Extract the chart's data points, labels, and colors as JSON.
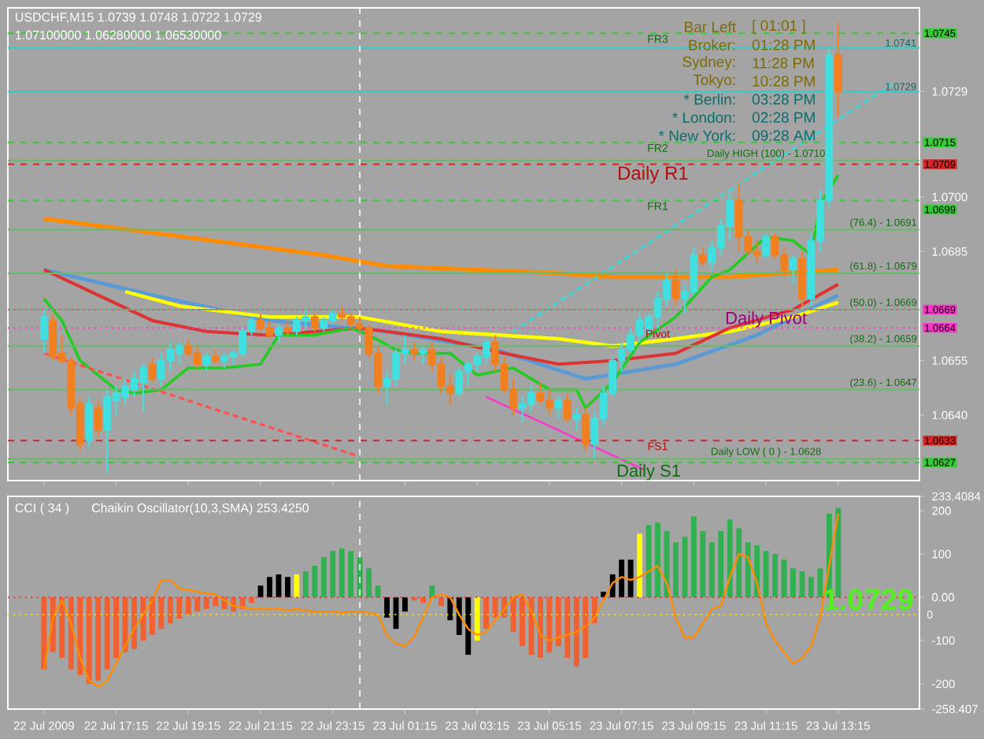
{
  "chart_data": [
    {
      "type": "candlestick",
      "title": "USDCHF,M15  1.0739 1.0748 1.0722 1.0729",
      "subtitle": "1.07100000 1.06280000 1.06530000",
      "x": [
        "2009-07-22T15:15",
        "2009-07-22T15:30",
        "2009-07-22T15:45",
        "2009-07-22T16:00",
        "2009-07-22T16:15",
        "2009-07-22T16:30",
        "2009-07-22T16:45",
        "2009-07-22T17:00",
        "2009-07-22T17:15",
        "2009-07-22T17:30",
        "2009-07-22T17:45",
        "2009-07-22T18:00",
        "2009-07-22T18:15",
        "2009-07-22T18:30",
        "2009-07-22T18:45",
        "2009-07-22T19:00",
        "2009-07-22T19:15",
        "2009-07-22T19:30",
        "2009-07-22T19:45",
        "2009-07-22T20:00",
        "2009-07-22T20:15",
        "2009-07-22T20:30",
        "2009-07-22T20:45",
        "2009-07-22T21:00",
        "2009-07-22T21:15",
        "2009-07-22T21:30",
        "2009-07-22T21:45",
        "2009-07-22T22:00",
        "2009-07-22T22:15",
        "2009-07-22T22:30",
        "2009-07-22T22:45",
        "2009-07-22T23:00",
        "2009-07-22T23:15",
        "2009-07-22T23:30",
        "2009-07-22T23:45",
        "2009-07-23T00:00",
        "2009-07-23T00:15",
        "2009-07-23T00:30",
        "2009-07-23T00:45",
        "2009-07-23T01:00",
        "2009-07-23T01:15",
        "2009-07-23T01:30",
        "2009-07-23T01:45",
        "2009-07-23T02:00",
        "2009-07-23T02:15",
        "2009-07-23T02:30",
        "2009-07-23T02:45",
        "2009-07-23T03:00",
        "2009-07-23T03:15",
        "2009-07-23T03:30",
        "2009-07-23T03:45",
        "2009-07-23T04:00",
        "2009-07-23T04:15",
        "2009-07-23T04:30",
        "2009-07-23T04:45",
        "2009-07-23T05:00",
        "2009-07-23T05:15",
        "2009-07-23T05:30",
        "2009-07-23T05:45",
        "2009-07-23T06:00",
        "2009-07-23T06:15",
        "2009-07-23T06:30",
        "2009-07-23T06:45",
        "2009-07-23T07:00",
        "2009-07-23T07:15",
        "2009-07-23T07:30",
        "2009-07-23T07:45",
        "2009-07-23T08:00",
        "2009-07-23T08:15",
        "2009-07-23T08:30",
        "2009-07-23T08:45",
        "2009-07-23T09:00",
        "2009-07-23T09:15",
        "2009-07-23T09:30",
        "2009-07-23T09:45",
        "2009-07-23T10:00",
        "2009-07-23T10:15",
        "2009-07-23T10:30",
        "2009-07-23T10:45",
        "2009-07-23T11:00",
        "2009-07-23T11:15",
        "2009-07-23T11:30",
        "2009-07-23T11:45",
        "2009-07-23T12:00",
        "2009-07-23T12:15",
        "2009-07-23T12:30",
        "2009-07-23T12:45",
        "2009-07-23T13:00",
        "2009-07-23T13:15"
      ],
      "ohlc": [
        [
          1.0661,
          1.0669,
          1.0657,
          1.0667
        ],
        [
          1.0666,
          1.0668,
          1.0655,
          1.0656
        ],
        [
          1.0657,
          1.0662,
          1.0654,
          1.0655
        ],
        [
          1.0655,
          1.0656,
          1.064,
          1.0642
        ],
        [
          1.0643,
          1.0645,
          1.063,
          1.0632
        ],
        [
          1.0633,
          1.0645,
          1.0631,
          1.0643
        ],
        [
          1.0642,
          1.0644,
          1.0634,
          1.0636
        ],
        [
          1.0636,
          1.0647,
          1.0624,
          1.0645
        ],
        [
          1.0644,
          1.0648,
          1.064,
          1.0646
        ],
        [
          1.0645,
          1.065,
          1.0643,
          1.0648
        ],
        [
          1.0647,
          1.0652,
          1.0645,
          1.065
        ],
        [
          1.0649,
          1.0654,
          1.0641,
          1.0653
        ],
        [
          1.0654,
          1.0656,
          1.0649,
          1.065
        ],
        [
          1.065,
          1.0657,
          1.0648,
          1.0655
        ],
        [
          1.0655,
          1.066,
          1.0652,
          1.0658
        ],
        [
          1.0657,
          1.066,
          1.0654,
          1.0659
        ],
        [
          1.0659,
          1.0661,
          1.0656,
          1.0657
        ],
        [
          1.0657,
          1.0659,
          1.0653,
          1.0654
        ],
        [
          1.0654,
          1.0657,
          1.0652,
          1.0656
        ],
        [
          1.0656,
          1.0658,
          1.0654,
          1.0655
        ],
        [
          1.0655,
          1.0657,
          1.0653,
          1.0656
        ],
        [
          1.0656,
          1.0658,
          1.0654,
          1.0657
        ],
        [
          1.0657,
          1.0664,
          1.0656,
          1.0663
        ],
        [
          1.0663,
          1.0667,
          1.0662,
          1.0666
        ],
        [
          1.0666,
          1.0668,
          1.0663,
          1.0664
        ],
        [
          1.0664,
          1.0666,
          1.0661,
          1.0662
        ],
        [
          1.0662,
          1.0665,
          1.066,
          1.0664
        ],
        [
          1.0664,
          1.0666,
          1.0662,
          1.0663
        ],
        [
          1.0663,
          1.0667,
          1.0662,
          1.0666
        ],
        [
          1.0666,
          1.0669,
          1.0664,
          1.0667
        ],
        [
          1.0667,
          1.0668,
          1.0663,
          1.0664
        ],
        [
          1.0664,
          1.0667,
          1.0663,
          1.0666
        ],
        [
          1.0666,
          1.0669,
          1.0665,
          1.0668
        ],
        [
          1.0668,
          1.067,
          1.0666,
          1.0667
        ],
        [
          1.0667,
          1.0668,
          1.0664,
          1.0665
        ],
        [
          1.0665,
          1.0667,
          1.0663,
          1.0664
        ],
        [
          1.0664,
          1.0665,
          1.0656,
          1.0657
        ],
        [
          1.0657,
          1.0659,
          1.0646,
          1.0648
        ],
        [
          1.0648,
          1.0652,
          1.0643,
          1.065
        ],
        [
          1.065,
          1.0658,
          1.0648,
          1.0657
        ],
        [
          1.0657,
          1.0662,
          1.0654,
          1.0658
        ],
        [
          1.0658,
          1.066,
          1.0655,
          1.0657
        ],
        [
          1.0657,
          1.0659,
          1.0654,
          1.0658
        ],
        [
          1.0658,
          1.066,
          1.0652,
          1.0654
        ],
        [
          1.0654,
          1.0656,
          1.0646,
          1.0648
        ],
        [
          1.0648,
          1.0651,
          1.0643,
          1.0646
        ],
        [
          1.0646,
          1.0653,
          1.0645,
          1.0652
        ],
        [
          1.0652,
          1.0655,
          1.0648,
          1.0654
        ],
        [
          1.0654,
          1.0657,
          1.0652,
          1.0656
        ],
        [
          1.0656,
          1.0661,
          1.0654,
          1.066
        ],
        [
          1.066,
          1.0662,
          1.0652,
          1.0654
        ],
        [
          1.0654,
          1.0656,
          1.0646,
          1.0647
        ],
        [
          1.0647,
          1.065,
          1.064,
          1.0642
        ],
        [
          1.0642,
          1.0645,
          1.0638,
          1.0643
        ],
        [
          1.0643,
          1.0648,
          1.0641,
          1.0646
        ],
        [
          1.0646,
          1.0649,
          1.0643,
          1.0644
        ],
        [
          1.0644,
          1.0647,
          1.064,
          1.0642
        ],
        [
          1.0642,
          1.0645,
          1.0639,
          1.0644
        ],
        [
          1.0644,
          1.0646,
          1.0638,
          1.0639
        ],
        [
          1.0639,
          1.0642,
          1.0636,
          1.064
        ],
        [
          1.064,
          1.0642,
          1.063,
          1.0632
        ],
        [
          1.0632,
          1.0641,
          1.0628,
          1.0639
        ],
        [
          1.0639,
          1.0648,
          1.0637,
          1.0646
        ],
        [
          1.0646,
          1.0656,
          1.0645,
          1.0655
        ],
        [
          1.0655,
          1.066,
          1.0652,
          1.0658
        ],
        [
          1.0658,
          1.0664,
          1.0657,
          1.0662
        ],
        [
          1.0662,
          1.0668,
          1.066,
          1.0666
        ],
        [
          1.0664,
          1.0668,
          1.0662,
          1.0667
        ],
        [
          1.0667,
          1.0674,
          1.0664,
          1.0672
        ],
        [
          1.0672,
          1.0679,
          1.067,
          1.0677
        ],
        [
          1.0677,
          1.068,
          1.067,
          1.0672
        ],
        [
          1.0672,
          1.0676,
          1.0668,
          1.0674
        ],
        [
          1.0674,
          1.0686,
          1.0673,
          1.0684
        ],
        [
          1.0684,
          1.0686,
          1.0681,
          1.0682
        ],
        [
          1.0682,
          1.0688,
          1.068,
          1.0686
        ],
        [
          1.0686,
          1.0694,
          1.0684,
          1.0692
        ],
        [
          1.0692,
          1.0701,
          1.0688,
          1.0699
        ],
        [
          1.0699,
          1.0704,
          1.0685,
          1.0689
        ],
        [
          1.0689,
          1.0691,
          1.0684,
          1.0685
        ],
        [
          1.0685,
          1.0688,
          1.0682,
          1.0684
        ],
        [
          1.0684,
          1.069,
          1.0683,
          1.0689
        ],
        [
          1.0689,
          1.069,
          1.0683,
          1.0684
        ],
        [
          1.0684,
          1.0686,
          1.0678,
          1.068
        ],
        [
          1.068,
          1.0684,
          1.0676,
          1.0683
        ],
        [
          1.0683,
          1.0685,
          1.067,
          1.0672
        ],
        [
          1.0672,
          1.069,
          1.067,
          1.0688
        ],
        [
          1.0688,
          1.0702,
          1.0685,
          1.0699
        ],
        [
          1.0699,
          1.0741,
          1.0697,
          1.0739
        ],
        [
          1.0739,
          1.0748,
          1.0722,
          1.0729
        ]
      ],
      "colors": [
        "#40e0e0",
        "#f08020",
        "#f08020",
        "#f08020",
        "#f08020",
        "#40e0e0",
        "#f08020",
        "#40e0e0",
        "#40e0e0",
        "#40e0e0",
        "#40e0e0",
        "#40e0e0",
        "#f08020",
        "#40e0e0",
        "#40e0e0",
        "#40e0e0",
        "#f08020",
        "#f08020",
        "#40e0e0",
        "#f08020",
        "#40e0e0",
        "#40e0e0",
        "#40e0e0",
        "#40e0e0",
        "#f08020",
        "#f08020",
        "#40e0e0",
        "#f08020",
        "#40e0e0",
        "#40e0e0",
        "#f08020",
        "#40e0e0",
        "#40e0e0",
        "#f08020",
        "#f08020",
        "#f08020",
        "#f08020",
        "#f08020",
        "#40e0e0",
        "#40e0e0",
        "#40e0e0",
        "#f08020",
        "#40e0e0",
        "#f08020",
        "#f08020",
        "#f08020",
        "#40e0e0",
        "#40e0e0",
        "#40e0e0",
        "#40e0e0",
        "#f08020",
        "#f08020",
        "#f08020",
        "#40e0e0",
        "#40e0e0",
        "#f08020",
        "#f08020",
        "#40e0e0",
        "#f08020",
        "#40e0e0",
        "#f08020",
        "#40e0e0",
        "#40e0e0",
        "#40e0e0",
        "#40e0e0",
        "#40e0e0",
        "#40e0e0",
        "#40e0e0",
        "#40e0e0",
        "#40e0e0",
        "#f08020",
        "#40e0e0",
        "#40e0e0",
        "#f08020",
        "#40e0e0",
        "#40e0e0",
        "#40e0e0",
        "#f08020",
        "#f08020",
        "#f08020",
        "#40e0e0",
        "#f08020",
        "#f08020",
        "#40e0e0",
        "#f08020",
        "#40e0e0",
        "#40e0e0",
        "#40e0e0",
        "#f08020"
      ],
      "xlim": [
        "2009-07-22T14:15",
        "2009-07-23T15:30"
      ],
      "xticks": [
        {
          "value": "2009-07-22T15:15",
          "label": null
        },
        {
          "value": "2009-07-22T17:15",
          "label": null
        },
        {
          "value": "2009-07-22T19:15",
          "label": null
        },
        {
          "value": "2009-07-22T21:15",
          "label": null
        },
        {
          "value": "2009-07-22T23:15",
          "label": null
        },
        {
          "value": "2009-07-23T01:15",
          "label": null
        },
        {
          "value": "2009-07-23T03:15",
          "label": null
        },
        {
          "value": "2009-07-23T05:15",
          "label": null
        },
        {
          "value": "2009-07-23T07:15",
          "label": null
        },
        {
          "value": "2009-07-23T09:15",
          "label": null
        },
        {
          "value": "2009-07-23T11:15",
          "label": null
        },
        {
          "value": "2009-07-23T13:15",
          "label": null
        }
      ],
      "ylim": [
        1.0622,
        1.0752
      ],
      "yticks": [
        {
          "value": 1.064,
          "label": "1.0640"
        },
        1.0655,
        1.0685,
        {
          "value": 1.07,
          "label": "1.0700"
        },
        {
          "value": 1.0729,
          "label": "1.0729"
        }
      ],
      "tick_labels": "y",
      "series": [
        {
          "type": "line",
          "color": "#ff8c00",
          "x": [
            "2009-07-22T15:15",
            "2009-07-22T23:00",
            "2009-07-23T00:45",
            "2009-07-23T05:30",
            "2009-07-23T07:00",
            "2009-07-23T10:15",
            "2009-07-23T13:15"
          ],
          "values": [
            1.0694,
            1.0684,
            1.0681,
            1.0679,
            1.0678,
            1.0678,
            1.068
          ]
        },
        {
          "type": "line",
          "color": "#5b9bd5",
          "x": [
            "2009-07-22T15:15",
            "2009-07-22T18:15",
            "2009-07-22T21:30",
            "2009-07-23T00:45",
            "2009-07-23T03:45",
            "2009-07-23T06:15",
            "2009-07-23T08:45",
            "2009-07-23T11:00",
            "2009-07-23T13:15"
          ],
          "values": [
            1.068,
            1.0673,
            1.0666,
            1.0663,
            1.0658,
            1.065,
            1.0654,
            1.0662,
            1.0673
          ]
        },
        {
          "type": "line",
          "color": "#ffff00",
          "x": [
            "2009-07-22T17:30",
            "2009-07-22T19:00",
            "2009-07-22T21:30",
            "2009-07-23T00:00",
            "2009-07-23T02:15",
            "2009-07-23T05:30",
            "2009-07-23T07:00",
            "2009-07-23T08:45",
            "2009-07-23T10:15",
            "2009-07-23T12:00",
            "2009-07-23T13:15"
          ],
          "values": [
            1.0674,
            1.067,
            1.0667,
            1.0667,
            1.0663,
            1.0661,
            1.0659,
            1.0661,
            1.0663,
            1.0667,
            1.0671
          ]
        },
        {
          "type": "line",
          "color": "#dd3333",
          "x": [
            "2009-07-22T15:15",
            "2009-07-22T16:45",
            "2009-07-22T18:15",
            "2009-07-22T19:45",
            "2009-07-22T21:30",
            "2009-07-23T00:00",
            "2009-07-23T02:15",
            "2009-07-23T04:00",
            "2009-07-23T05:30",
            "2009-07-23T07:00",
            "2009-07-23T08:45",
            "2009-07-23T10:15",
            "2009-07-23T12:00",
            "2009-07-23T13:15"
          ],
          "values": [
            1.068,
            1.0673,
            1.0666,
            1.0663,
            1.0662,
            1.0664,
            1.0661,
            1.0657,
            1.0654,
            1.0655,
            1.0657,
            1.0664,
            1.0669,
            1.0676
          ]
        },
        {
          "type": "line",
          "color": "#22cc22",
          "x": [
            "2009-07-22T15:15",
            "2009-07-22T15:45",
            "2009-07-22T16:15",
            "2009-07-22T17:15",
            "2009-07-22T17:45",
            "2009-07-22T18:30",
            "2009-07-22T19:15",
            "2009-07-22T20:15",
            "2009-07-22T21:15",
            "2009-07-22T21:45",
            "2009-07-22T22:45",
            "2009-07-22T23:45",
            "2009-07-23T00:15",
            "2009-07-23T01:00",
            "2009-07-23T01:30",
            "2009-07-23T02:30",
            "2009-07-23T03:15",
            "2009-07-23T04:15",
            "2009-07-23T05:15",
            "2009-07-23T06:00",
            "2009-07-23T06:15",
            "2009-07-23T07:00",
            "2009-07-23T07:45",
            "2009-07-23T08:45",
            "2009-07-23T09:45",
            "2009-07-23T10:15",
            "2009-07-23T11:15",
            "2009-07-23T12:00",
            "2009-07-23T12:30",
            "2009-07-23T12:45",
            "2009-07-23T13:15"
          ],
          "values": [
            1.0672,
            1.0666,
            1.0655,
            1.0647,
            1.0646,
            1.0647,
            1.0653,
            1.0653,
            1.0654,
            1.0662,
            1.0662,
            1.0664,
            1.0662,
            1.0658,
            1.0657,
            1.0657,
            1.0651,
            1.0653,
            1.0647,
            1.0647,
            1.0642,
            1.0649,
            1.066,
            1.0667,
            1.0678,
            1.068,
            1.0689,
            1.0688,
            1.0684,
            1.0698,
            1.0706
          ]
        },
        {
          "type": "line",
          "color": "#ff5050",
          "line_style": "dashed",
          "x": [
            "2009-07-22T15:15",
            "2009-07-22T23:52"
          ],
          "values": [
            1.0657,
            1.0629
          ]
        },
        {
          "type": "line",
          "color": "#33dddd",
          "line_style": "dashed",
          "x": [
            "2009-07-23T04:15",
            "2009-07-23T14:45"
          ],
          "values": [
            1.0663,
            1.0731
          ]
        },
        {
          "type": "line",
          "color": "#ff33cc",
          "x": [
            "2009-07-23T03:30",
            "2009-07-23T07:52"
          ],
          "values": [
            1.0645,
            1.0625
          ]
        }
      ],
      "ref_lines": [
        {
          "axis": "y",
          "value": 1.0745,
          "label": "1.0745",
          "color": "#33cc33",
          "line_style": "dashed"
        },
        {
          "axis": "y",
          "value": 1.0741,
          "label": "1.0741",
          "color": "#33cccc"
        },
        {
          "axis": "y",
          "value": 1.0729,
          "label": "1.0729",
          "color": "#33cccc"
        },
        {
          "axis": "y",
          "value": 1.0715,
          "label": "1.0715",
          "color": "#33cc33",
          "line_style": "dashed"
        },
        {
          "axis": "y",
          "value": 1.071,
          "color": "#66bb66"
        },
        {
          "axis": "y",
          "value": 1.0709,
          "label": "1.0709",
          "color": "#dd2222",
          "line_style": "dashed"
        },
        {
          "axis": "y",
          "value": 1.0699,
          "label": "1.0699",
          "color": "#33cc33",
          "line_style": "dashed"
        },
        {
          "axis": "y",
          "value": 1.0691,
          "color": "#66bb66"
        },
        {
          "axis": "y",
          "value": 1.0679,
          "color": "#66bb66"
        },
        {
          "axis": "y",
          "value": 1.0669,
          "color": "#66bb66"
        },
        {
          "axis": "y",
          "value": 1.0669,
          "label": "1.0669",
          "color": "#ff33cc",
          "line_style": "dotted"
        },
        {
          "axis": "y",
          "value": 1.0664,
          "label": "1.0664",
          "color": "#ff33cc",
          "line_style": "dotted"
        },
        {
          "axis": "y",
          "value": 1.0659,
          "color": "#66bb66"
        },
        {
          "axis": "y",
          "value": 1.0647,
          "color": "#66bb66"
        },
        {
          "axis": "y",
          "value": 1.0633,
          "label": "1.0633",
          "color": "#dd2222",
          "line_style": "dashed"
        },
        {
          "axis": "y",
          "value": 1.0628,
          "color": "#66bb66"
        },
        {
          "axis": "y",
          "value": 1.0627,
          "label": "1.0627",
          "color": "#33cc33",
          "line_style": "dashed"
        },
        {
          "axis": "x",
          "value": "2009-07-23T00:00",
          "color": "#ffffff",
          "line_style": "dashed"
        }
      ],
      "annotations": [
        {
          "text": "FR3",
          "x": "2009-07-23T08:15",
          "y": 1.0745
        },
        {
          "text": "FR2",
          "x": "2009-07-23T08:15",
          "y": 1.0715
        },
        {
          "text": "FR1",
          "x": "2009-07-23T08:15",
          "y": 1.0699
        },
        {
          "text": "Daily R1",
          "x": "2009-07-23T08:07",
          "y": 1.0709
        },
        {
          "text": "Pivot",
          "x": "2009-07-23T08:15",
          "y": 1.0664
        },
        {
          "text": "Daily Pivot",
          "x": "2009-07-23T11:15",
          "y": 1.0669
        },
        {
          "text": "FS1",
          "x": "2009-07-23T08:15",
          "y": 1.0633
        },
        {
          "text": "Daily S1",
          "x": "2009-07-23T08:00",
          "y": 1.0627
        },
        {
          "text": "Daily HIGH (100) - 1.0710",
          "x": "2009-07-23T11:15",
          "y": 1.071
        },
        {
          "text": "(76.4) - 1.0691",
          "x": "2009-07-23T14:30",
          "y": 1.0691
        },
        {
          "text": "(61.8) - 1.0679",
          "x": "2009-07-23T14:30",
          "y": 1.0679
        },
        {
          "text": "(50.0) - 1.0669",
          "x": "2009-07-23T14:30",
          "y": 1.0669
        },
        {
          "text": "(38.2) - 1.0659",
          "x": "2009-07-23T14:30",
          "y": 1.0659
        },
        {
          "text": "(23.6) - 1.0647",
          "x": "2009-07-23T14:30",
          "y": 1.0647
        },
        {
          "text": "Daily LOW ( 0 ) - 1.0628",
          "x": "2009-07-23T11:15",
          "y": 1.0628
        },
        "Bar Left",
        "[ 01:01 ]",
        "Broker:",
        "01:28 PM",
        "Sydney:",
        "11:28 PM",
        "Tokyo:",
        "10:28 PM",
        "* Berlin:",
        "03:28 PM",
        "* London:",
        "02:28 PM",
        "* New York:",
        "09:28 AM"
      ]
    },
    {
      "type": "bar",
      "title": "CCI ( 34 )",
      "subtitle": "Chaikin Oscillator(10,3,SMA) 253.4250",
      "x": [
        "2009-07-22T15:15",
        "2009-07-22T15:30",
        "2009-07-22T15:45",
        "2009-07-22T16:00",
        "2009-07-22T16:15",
        "2009-07-22T16:30",
        "2009-07-22T16:45",
        "2009-07-22T17:00",
        "2009-07-22T17:15",
        "2009-07-22T17:30",
        "2009-07-22T17:45",
        "2009-07-22T18:00",
        "2009-07-22T18:15",
        "2009-07-22T18:30",
        "2009-07-22T18:45",
        "2009-07-22T19:00",
        "2009-07-22T19:15",
        "2009-07-22T19:30",
        "2009-07-22T19:45",
        "2009-07-22T20:00",
        "2009-07-22T20:15",
        "2009-07-22T20:30",
        "2009-07-22T20:45",
        "2009-07-22T21:00",
        "2009-07-22T21:15",
        "2009-07-22T21:30",
        "2009-07-22T21:45",
        "2009-07-22T22:00",
        "2009-07-22T22:15",
        "2009-07-22T22:30",
        "2009-07-22T22:45",
        "2009-07-22T23:00",
        "2009-07-22T23:15",
        "2009-07-22T23:30",
        "2009-07-22T23:45",
        "2009-07-23T00:00",
        "2009-07-23T00:15",
        "2009-07-23T00:30",
        "2009-07-23T00:45",
        "2009-07-23T01:00",
        "2009-07-23T01:15",
        "2009-07-23T01:30",
        "2009-07-23T01:45",
        "2009-07-23T02:00",
        "2009-07-23T02:15",
        "2009-07-23T02:30",
        "2009-07-23T02:45",
        "2009-07-23T03:00",
        "2009-07-23T03:15",
        "2009-07-23T03:30",
        "2009-07-23T03:45",
        "2009-07-23T04:00",
        "2009-07-23T04:15",
        "2009-07-23T04:30",
        "2009-07-23T04:45",
        "2009-07-23T05:00",
        "2009-07-23T05:15",
        "2009-07-23T05:30",
        "2009-07-23T05:45",
        "2009-07-23T06:00",
        "2009-07-23T06:15",
        "2009-07-23T06:30",
        "2009-07-23T06:45",
        "2009-07-23T07:00",
        "2009-07-23T07:15",
        "2009-07-23T07:30",
        "2009-07-23T07:45",
        "2009-07-23T08:00",
        "2009-07-23T08:15",
        "2009-07-23T08:30",
        "2009-07-23T08:45",
        "2009-07-23T09:00",
        "2009-07-23T09:15",
        "2009-07-23T09:30",
        "2009-07-23T09:45",
        "2009-07-23T10:00",
        "2009-07-23T10:15",
        "2009-07-23T10:30",
        "2009-07-23T10:45",
        "2009-07-23T11:00",
        "2009-07-23T11:15",
        "2009-07-23T11:30",
        "2009-07-23T11:45",
        "2009-07-23T12:00",
        "2009-07-23T12:15",
        "2009-07-23T12:30",
        "2009-07-23T12:45",
        "2009-07-23T13:00",
        "2009-07-23T13:15"
      ],
      "xlim": [
        "2009-07-22T14:15",
        "2009-07-23T15:30"
      ],
      "xticks": [
        {
          "value": "2009-07-22T15:15",
          "label": "22 Jul 2009"
        },
        {
          "value": "2009-07-22T17:15",
          "label": "22 Jul 17:15"
        },
        {
          "value": "2009-07-22T19:15",
          "label": "22 Jul 19:15"
        },
        {
          "value": "2009-07-22T21:15",
          "label": "22 Jul 21:15"
        },
        {
          "value": "2009-07-22T23:15",
          "label": "22 Jul 23:15"
        },
        {
          "value": "2009-07-23T01:15",
          "label": "23 Jul 01:15"
        },
        {
          "value": "2009-07-23T03:15",
          "label": "23 Jul 03:15"
        },
        {
          "value": "2009-07-23T05:15",
          "label": "23 Jul 05:15"
        },
        {
          "value": "2009-07-23T07:15",
          "label": "23 Jul 07:15"
        },
        {
          "value": "2009-07-23T09:15",
          "label": "23 Jul 09:15"
        },
        {
          "value": "2009-07-23T11:15",
          "label": "23 Jul 11:15"
        },
        {
          "value": "2009-07-23T13:15",
          "label": "23 Jul 13:15"
        }
      ],
      "ylim": [
        -258.407,
        233.4084
      ],
      "yticks": [
        {
          "value": 233.4084,
          "label": "233.4084"
        },
        200,
        100,
        {
          "value": 0,
          "label": "0.00"
        },
        -100,
        -200,
        {
          "value": -258.407,
          "label": "-258.407"
        }
      ],
      "series": [
        {
          "values": [
            -167,
            -127,
            -140,
            -167,
            -180,
            -200,
            -193,
            -167,
            -140,
            -127,
            -120,
            -100,
            -87,
            -73,
            -60,
            -49,
            -40,
            -33,
            -27,
            -20,
            -27,
            -33,
            -27,
            -13,
            27,
            47,
            53,
            47,
            53,
            60,
            73,
            93,
            107,
            113,
            107,
            93,
            67,
            27,
            -47,
            -73,
            -33,
            -7,
            -13,
            27,
            -20,
            -53,
            -87,
            -133,
            -100,
            -73,
            -47,
            -47,
            -80,
            -113,
            -133,
            -140,
            -127,
            -113,
            -140,
            -160,
            -140,
            -60,
            13,
            53,
            87,
            87,
            147,
            167,
            173,
            153,
            127,
            140,
            187,
            153,
            127,
            153,
            180,
            160,
            127,
            120,
            107,
            100,
            87,
            67,
            60,
            47,
            67,
            193,
            207
          ],
          "colors": [
            "#f06030",
            "#f06030",
            "#f06030",
            "#f06030",
            "#f06030",
            "#f06030",
            "#f06030",
            "#f06030",
            "#f06030",
            "#f06030",
            "#f06030",
            "#f06030",
            "#f06030",
            "#f06030",
            "#f06030",
            "#f06030",
            "#f06030",
            "#f06030",
            "#f06030",
            "#f06030",
            "#f06030",
            "#f06030",
            "#f06030",
            "#f06030",
            "#000000",
            "#000000",
            "#000000",
            "#000000",
            "#ffff00",
            "#30b050",
            "#30b050",
            "#30b050",
            "#30b050",
            "#30b050",
            "#30b050",
            "#30b050",
            "#30b050",
            "#30b050",
            "#000000",
            "#000000",
            "#000000",
            "#f06030",
            "#f06030",
            "#30b050",
            "#f06030",
            "#000000",
            "#000000",
            "#000000",
            "#ffff00",
            "#f06030",
            "#f06030",
            "#f06030",
            "#f06030",
            "#f06030",
            "#f06030",
            "#f06030",
            "#f06030",
            "#f06030",
            "#f06030",
            "#f06030",
            "#f06030",
            "#f06030",
            "#000000",
            "#000000",
            "#000000",
            "#000000",
            "#ffff00",
            "#30b050",
            "#30b050",
            "#30b050",
            "#30b050",
            "#30b050",
            "#30b050",
            "#30b050",
            "#30b050",
            "#30b050",
            "#30b050",
            "#30b050",
            "#30b050",
            "#30b050",
            "#30b050",
            "#30b050",
            "#30b050",
            "#30b050",
            "#30b050",
            "#30b050",
            "#30b050",
            "#30b050",
            "#30b050"
          ]
        },
        {
          "type": "line",
          "color": "#ff8c00",
          "values": [
            -167,
            -47,
            -7,
            -60,
            -140,
            -193,
            -207,
            -193,
            -153,
            -113,
            -73,
            -40,
            -7,
            40,
            40,
            20,
            17,
            13,
            9,
            7,
            -7,
            -20,
            -23,
            -27,
            -27,
            -27,
            -27,
            -31,
            -27,
            -31,
            -33,
            -33,
            -33,
            -36,
            -33,
            -33,
            -36,
            -40,
            -87,
            -107,
            -113,
            -93,
            -47,
            0,
            7,
            0,
            -40,
            -73,
            -87,
            -80,
            -53,
            -27,
            0,
            7,
            -33,
            -87,
            -100,
            -93,
            -87,
            -80,
            -67,
            -47,
            -7,
            33,
            47,
            40,
            47,
            60,
            73,
            33,
            -47,
            -93,
            -93,
            -60,
            -27,
            -20,
            47,
            100,
            93,
            33,
            -60,
            -100,
            -127,
            -153,
            -140,
            -113,
            -47,
            73,
            193
          ]
        }
      ],
      "ref_lines": [
        {
          "axis": "y",
          "value": 0,
          "color": "#ee3333",
          "line_style": "dotted"
        },
        {
          "axis": "y",
          "value": -40,
          "color": "#ffd700",
          "line_style": "dotted"
        },
        {
          "axis": "x",
          "value": "2009-07-23T00:00",
          "color": "#ffffff",
          "line_style": "dashed"
        }
      ],
      "annotations": [
        "1.0729",
        "0"
      ]
    }
  ]
}
